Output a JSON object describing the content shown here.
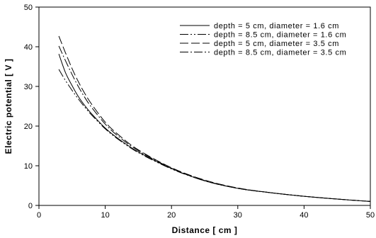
{
  "chart_data": {
    "type": "line",
    "title": "",
    "xlabel": "Distance  [  cm  ]",
    "ylabel": "Electric potential  [  V  ]",
    "xlim": [
      0,
      50
    ],
    "ylim": [
      0,
      50
    ],
    "xticks": [
      "0",
      "10",
      "20",
      "30",
      "40",
      "50"
    ],
    "yticks": [
      "0",
      "10",
      "20",
      "30",
      "40",
      "50"
    ],
    "grid": false,
    "legend_position": "top-right",
    "series": [
      {
        "name": "depth = 5 cm, diameter = 1.6 cm",
        "dash": "solid",
        "x": [
          3,
          4,
          5,
          6,
          7,
          8,
          10,
          12,
          15,
          20,
          25,
          30,
          35,
          40,
          45,
          50
        ],
        "y": [
          38.2,
          33.5,
          30.2,
          27.3,
          25.0,
          23.0,
          19.5,
          16.8,
          13.5,
          9.3,
          6.2,
          4.3,
          3.2,
          2.3,
          1.6,
          1.0
        ]
      },
      {
        "name": "depth = 8.5 cm, diameter = 1.6 cm",
        "dash": "dash-dot-dot",
        "x": [
          3,
          4,
          5,
          6,
          7,
          8,
          10,
          12,
          15,
          20,
          25,
          30,
          35,
          40,
          45,
          50
        ],
        "y": [
          34.3,
          31.5,
          29.0,
          26.7,
          24.6,
          22.7,
          19.3,
          16.6,
          13.3,
          9.2,
          6.2,
          4.3,
          3.2,
          2.3,
          1.6,
          1.0
        ]
      },
      {
        "name": "depth = 5 cm, diameter = 3.5 cm",
        "dash": "dash",
        "x": [
          3,
          4,
          5,
          6,
          7,
          8,
          10,
          12,
          15,
          20,
          25,
          30,
          35,
          40,
          45,
          50
        ],
        "y": [
          42.7,
          38.5,
          34.5,
          31.0,
          28.0,
          25.4,
          21.0,
          17.8,
          14.0,
          9.5,
          6.4,
          4.4,
          3.2,
          2.3,
          1.6,
          1.0
        ]
      },
      {
        "name": "depth = 8.5 cm, diameter = 3.5 cm",
        "dash": "dash-dot",
        "x": [
          3,
          4,
          5,
          6,
          7,
          8,
          10,
          12,
          15,
          20,
          25,
          30,
          35,
          40,
          45,
          50
        ],
        "y": [
          40.2,
          36.5,
          33.0,
          29.8,
          27.0,
          24.6,
          20.5,
          17.4,
          13.8,
          9.4,
          6.3,
          4.3,
          3.2,
          2.3,
          1.6,
          1.0
        ]
      }
    ]
  }
}
